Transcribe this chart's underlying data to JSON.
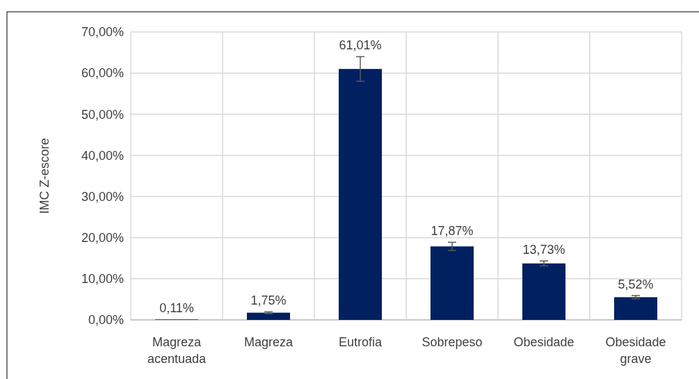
{
  "chart_data": {
    "type": "bar",
    "ylabel": "IMC Z-escore",
    "categories": [
      "Magreza acentuada",
      "Magreza",
      "Eutrofia",
      "Sobrepeso",
      "Obesidade",
      "Obesidade grave"
    ],
    "values": [
      0.11,
      1.75,
      61.01,
      17.87,
      13.73,
      5.52
    ],
    "errors": [
      null,
      0.2,
      3,
      1,
      0.6,
      0.4
    ],
    "value_labels": [
      "0,11%",
      "1,75%",
      "61,01%",
      "17,87%",
      "13,73%",
      "5,52%"
    ],
    "color": "#002060",
    "ylim": [
      0,
      70
    ],
    "yticks": [
      {
        "value": 0,
        "label": "0,00%"
      },
      {
        "value": 10,
        "label": "10,00%"
      },
      {
        "value": 20,
        "label": "20,00%"
      },
      {
        "value": 30,
        "label": "30,00%"
      },
      {
        "value": 40,
        "label": "40,00%"
      },
      {
        "value": 50,
        "label": "50,00%"
      },
      {
        "value": 60,
        "label": "60,00%"
      },
      {
        "value": 70,
        "label": "70,00%"
      }
    ],
    "grid": true
  }
}
